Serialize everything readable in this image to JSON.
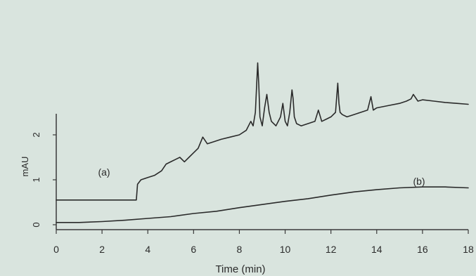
{
  "chart_data": {
    "type": "line",
    "xlabel": "Time (min)",
    "ylabel": "mAU",
    "xlim": [
      0,
      18
    ],
    "ylim": [
      0,
      2.6
    ],
    "xticks": [
      "0",
      "2",
      "4",
      "6",
      "8",
      "10",
      "12",
      "14",
      "16",
      "18"
    ],
    "yticks": [
      "0",
      "1",
      "2"
    ],
    "grid": false,
    "annotations": [
      "(a)",
      "(b)"
    ],
    "series": [
      {
        "name": "(a)",
        "x": [
          0,
          1,
          2,
          3,
          3.5,
          3.55,
          3.7,
          4.0,
          4.3,
          4.6,
          4.8,
          5.0,
          5.2,
          5.4,
          5.6,
          5.8,
          6.0,
          6.2,
          6.4,
          6.6,
          6.9,
          7.2,
          7.6,
          8.0,
          8.3,
          8.5,
          8.6,
          8.7,
          8.8,
          8.85,
          8.9,
          9.0,
          9.1,
          9.2,
          9.3,
          9.4,
          9.6,
          9.8,
          9.9,
          10.0,
          10.1,
          10.2,
          10.3,
          10.35,
          10.4,
          10.5,
          10.7,
          11.0,
          11.3,
          11.45,
          11.6,
          11.8,
          12.0,
          12.2,
          12.3,
          12.35,
          12.4,
          12.5,
          12.7,
          13.0,
          13.3,
          13.6,
          13.75,
          13.85,
          14.0,
          14.5,
          15.0,
          15.3,
          15.5,
          15.6,
          15.8,
          16.0,
          16.5,
          17.0,
          17.5,
          18.0
        ],
        "values": [
          0.55,
          0.55,
          0.55,
          0.55,
          0.55,
          0.9,
          1.0,
          1.05,
          1.1,
          1.2,
          1.35,
          1.4,
          1.45,
          1.5,
          1.4,
          1.5,
          1.6,
          1.7,
          1.95,
          1.8,
          1.85,
          1.9,
          1.95,
          2.0,
          2.1,
          2.3,
          2.2,
          2.5,
          3.6,
          3.1,
          2.4,
          2.2,
          2.6,
          2.9,
          2.5,
          2.3,
          2.2,
          2.4,
          2.7,
          2.3,
          2.2,
          2.5,
          3.0,
          2.8,
          2.4,
          2.25,
          2.2,
          2.25,
          2.3,
          2.55,
          2.3,
          2.35,
          2.4,
          2.5,
          3.15,
          2.7,
          2.5,
          2.45,
          2.4,
          2.45,
          2.5,
          2.55,
          2.85,
          2.55,
          2.6,
          2.65,
          2.7,
          2.75,
          2.8,
          2.9,
          2.75,
          2.78,
          2.75,
          2.72,
          2.7,
          2.68
        ]
      },
      {
        "name": "(b)",
        "x": [
          0,
          1,
          2,
          3,
          4,
          5,
          6,
          7,
          8,
          9,
          10,
          11,
          12,
          13,
          14,
          15,
          16,
          17,
          18
        ],
        "values": [
          0.05,
          0.05,
          0.07,
          0.1,
          0.14,
          0.18,
          0.25,
          0.3,
          0.38,
          0.45,
          0.52,
          0.58,
          0.66,
          0.73,
          0.78,
          0.82,
          0.84,
          0.84,
          0.82
        ]
      }
    ]
  }
}
